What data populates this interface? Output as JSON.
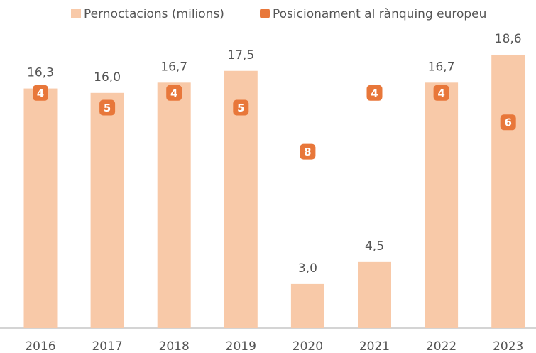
{
  "chart_data": {
    "type": "bar",
    "categories": [
      "2016",
      "2017",
      "2018",
      "2019",
      "2020",
      "2021",
      "2022",
      "2023"
    ],
    "series": [
      {
        "name": "Pernoctacions (milions)",
        "color": "#f8c9a8",
        "values": [
          16.3,
          16.0,
          16.7,
          17.5,
          3.0,
          4.5,
          16.7,
          18.6
        ],
        "value_labels": [
          "16,3",
          "16,0",
          "16,7",
          "17,5",
          "3,0",
          "4,5",
          "16,7",
          "18,6"
        ]
      },
      {
        "name": "Posicionament al rànquing europeu",
        "color": "#e8773a",
        "axis": "y2",
        "type": "marker",
        "values": [
          4,
          5,
          4,
          5,
          8,
          4,
          4,
          6
        ]
      }
    ],
    "ylim": [
      0,
      20
    ],
    "y2lim": [
      20,
      0
    ],
    "legend": "top"
  }
}
